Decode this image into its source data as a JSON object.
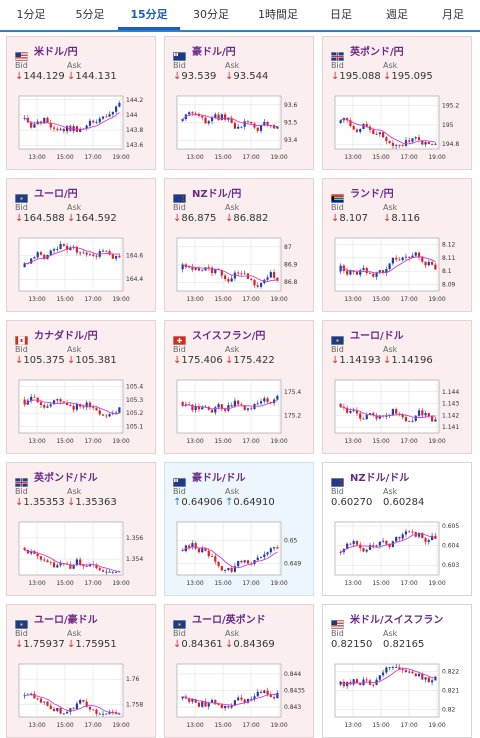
{
  "tabs": [
    "1分足",
    "5分足",
    "15分足",
    "30分足",
    "1時間足",
    "日足",
    "週足",
    "月足"
  ],
  "active_tab": 2,
  "labels": {
    "bid": "Bid",
    "ask": "Ask"
  },
  "times": [
    "13:00",
    "15:00",
    "17:00",
    "19:00"
  ],
  "cards": [
    {
      "pair": "米ドル/円",
      "bid": "144.129",
      "ask": "144.131",
      "direction": "down",
      "flag": "us-jp",
      "yticks": [
        "144.2",
        "144",
        "143.8",
        "143.6"
      ],
      "ymin": 143.55,
      "ymax": 144.25
    },
    {
      "pair": "豪ドル/円",
      "bid": "93.539",
      "ask": "93.544",
      "direction": "down",
      "flag": "au-jp",
      "yticks": [
        "93.6",
        "93.5",
        "93.4"
      ],
      "ymin": 93.35,
      "ymax": 93.65
    },
    {
      "pair": "英ポンド/円",
      "bid": "195.088",
      "ask": "195.095",
      "direction": "down",
      "flag": "gb-jp",
      "yticks": [
        "195.2",
        "195",
        "194.8"
      ],
      "ymin": 194.75,
      "ymax": 195.3
    },
    {
      "pair": "ユーロ/円",
      "bid": "164.588",
      "ask": "164.592",
      "direction": "down",
      "flag": "eu-jp",
      "yticks": [
        "164.6",
        "164.4"
      ],
      "ymin": 164.3,
      "ymax": 164.75
    },
    {
      "pair": "NZドル/円",
      "bid": "86.875",
      "ask": "86.882",
      "direction": "down",
      "flag": "nz-jp",
      "yticks": [
        "87",
        "86.9",
        "86.8"
      ],
      "ymin": 86.75,
      "ymax": 87.05
    },
    {
      "pair": "ランド/円",
      "bid": "8.107",
      "ask": "8.116",
      "direction": "down",
      "flag": "za-jp",
      "yticks": [
        "8.12",
        "8.11",
        "8.1",
        "8.09"
      ],
      "ymin": 8.085,
      "ymax": 8.125
    },
    {
      "pair": "カナダドル/円",
      "bid": "105.375",
      "ask": "105.381",
      "direction": "down",
      "flag": "ca-jp",
      "yticks": [
        "105.4",
        "105.3",
        "105.2",
        "105.1"
      ],
      "ymin": 105.05,
      "ymax": 105.45
    },
    {
      "pair": "スイスフラン/円",
      "bid": "175.406",
      "ask": "175.422",
      "direction": "down",
      "flag": "ch-jp",
      "yticks": [
        "175.4",
        "175.2"
      ],
      "ymin": 175.05,
      "ymax": 175.5
    },
    {
      "pair": "ユーロ/ドル",
      "bid": "1.14193",
      "ask": "1.14196",
      "direction": "down",
      "flag": "eu-us",
      "yticks": [
        "1.144",
        "1.143",
        "1.142",
        "1.141"
      ],
      "ymin": 1.1405,
      "ymax": 1.145
    },
    {
      "pair": "英ポンド/ドル",
      "bid": "1.35353",
      "ask": "1.35363",
      "direction": "down",
      "flag": "gb-us",
      "yticks": [
        "1.356",
        "1.354"
      ],
      "ymin": 1.3525,
      "ymax": 1.3575
    },
    {
      "pair": "豪ドル/ドル",
      "bid": "0.64906",
      "ask": "0.64910",
      "direction": "up",
      "flag": "au-us",
      "yticks": [
        "0.65",
        "0.649"
      ],
      "ymin": 0.6485,
      "ymax": 0.6508
    },
    {
      "pair": "NZドル/ドル",
      "bid": "0.60270",
      "ask": "0.60284",
      "direction": "flat",
      "flag": "nz-us",
      "yticks": [
        "0.605",
        "0.604",
        "0.603"
      ],
      "ymin": 0.6025,
      "ymax": 0.6052
    },
    {
      "pair": "ユーロ/豪ドル",
      "bid": "1.75937",
      "ask": "1.75951",
      "direction": "down",
      "flag": "eu-au",
      "yticks": [
        "1.76",
        "1.758"
      ],
      "ymin": 1.757,
      "ymax": 1.7612
    },
    {
      "pair": "ユーロ/英ポンド",
      "bid": "0.84361",
      "ask": "0.84369",
      "direction": "down",
      "flag": "eu-gb",
      "yticks": [
        "0.844",
        "0.8435",
        "0.843"
      ],
      "ymin": 0.8427,
      "ymax": 0.8443
    },
    {
      "pair": "米ドル/スイスフラン",
      "bid": "0.82150",
      "ask": "0.82165",
      "direction": "flat",
      "flag": "us-ch",
      "yticks": [
        "0.822",
        "0.821",
        "0.82"
      ],
      "ymin": 0.8196,
      "ymax": 0.8224
    }
  ],
  "colors": {
    "up_candle": "#1a3fa8",
    "down_candle": "#e02020",
    "ma_line": "#d040d0",
    "grid": "#dddddd",
    "down_arrow": "#d63333",
    "up_arrow": "#1e7ac9"
  },
  "arrows": {
    "down": "↓",
    "up": "↑",
    "flat": ""
  }
}
